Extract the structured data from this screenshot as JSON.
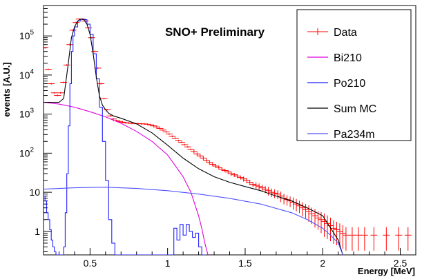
{
  "chart_data": {
    "type": "line",
    "title": "SNO+ Preliminary",
    "xlabel": "Energy [MeV]",
    "ylabel": "events [A.U.]",
    "xlim": [
      0.2,
      2.6
    ],
    "ylim": [
      0.25,
      600000
    ],
    "ylog": true,
    "grid": false,
    "legend_position": "top-right",
    "x_ticks": [
      0.5,
      1,
      1.5,
      2,
      2.5
    ],
    "x_tick_labels": [
      "0.5",
      "1",
      "1.5",
      "2",
      "2.5"
    ],
    "y_ticks": [
      1,
      10,
      100,
      1000,
      10000,
      100000
    ],
    "y_tick_labels": [
      {
        "base": "1",
        "exp": ""
      },
      {
        "base": "10",
        "exp": ""
      },
      {
        "base": "10",
        "exp": "2"
      },
      {
        "base": "10",
        "exp": "3"
      },
      {
        "base": "10",
        "exp": "4"
      },
      {
        "base": "10",
        "exp": "5"
      }
    ],
    "series": [
      {
        "name": "Data",
        "color": "#ff0000",
        "style": "markers",
        "x": [
          0.21,
          0.23,
          0.25,
          0.27,
          0.29,
          0.31,
          0.33,
          0.35,
          0.37,
          0.39,
          0.41,
          0.43,
          0.45,
          0.47,
          0.49,
          0.51,
          0.53,
          0.55,
          0.57,
          0.59,
          0.61,
          0.63,
          0.65,
          0.67,
          0.69,
          0.71,
          0.73,
          0.75,
          0.77,
          0.79,
          0.81,
          0.83,
          0.85,
          0.87,
          0.89,
          0.91,
          0.93,
          0.95,
          0.97,
          0.99,
          1.01,
          1.03,
          1.05,
          1.07,
          1.09,
          1.11,
          1.13,
          1.15,
          1.17,
          1.19,
          1.21,
          1.23,
          1.25,
          1.27,
          1.29,
          1.31,
          1.33,
          1.35,
          1.37,
          1.39,
          1.41,
          1.43,
          1.45,
          1.47,
          1.49,
          1.51,
          1.53,
          1.55,
          1.57,
          1.59,
          1.61,
          1.63,
          1.65,
          1.67,
          1.69,
          1.71,
          1.73,
          1.75,
          1.77,
          1.79,
          1.81,
          1.83,
          1.85,
          1.87,
          1.89,
          1.91,
          1.93,
          1.95,
          1.97,
          1.99,
          2.01,
          2.03,
          2.05,
          2.07,
          2.09,
          2.11,
          2.13,
          2.15,
          2.19,
          2.23,
          2.27,
          2.33,
          2.41,
          2.49,
          2.55
        ],
        "values": [
          50000,
          14000,
          6000,
          3500,
          3000,
          3500,
          6500,
          18000,
          60000,
          140000,
          220000,
          270000,
          270000,
          240000,
          160000,
          90000,
          40000,
          15000,
          6000,
          2500,
          1300,
          900,
          750,
          680,
          650,
          620,
          600,
          590,
          580,
          575,
          570,
          565,
          560,
          550,
          530,
          500,
          470,
          430,
          390,
          350,
          310,
          270,
          240,
          210,
          190,
          165,
          145,
          125,
          110,
          95,
          85,
          75,
          66,
          58,
          52,
          47,
          43,
          39,
          36,
          33,
          30,
          28,
          26,
          24,
          22,
          20,
          18,
          16,
          15,
          14,
          13,
          12,
          11,
          10,
          9.5,
          9,
          8,
          7,
          6.5,
          6,
          5.5,
          5,
          4.5,
          4,
          3.6,
          3.2,
          2.8,
          2.5,
          2.2,
          2.0,
          1.8,
          1.6,
          1.4,
          1.2,
          1.1,
          1.0,
          0.9,
          0.8,
          0.8,
          0.8,
          0.8,
          0.8,
          0.8,
          0.8,
          0.8
        ],
        "yerr_rel": [
          0.05,
          0.05,
          0.05,
          0.05,
          0.05,
          0.05,
          0.05,
          0.05,
          0.05,
          0.05,
          0.05,
          0.05,
          0.05,
          0.05,
          0.05,
          0.05,
          0.05,
          0.05,
          0.05,
          0.05,
          0.05,
          0.05,
          0.05,
          0.05,
          0.05,
          0.05,
          0.05,
          0.05,
          0.05,
          0.05,
          0.05,
          0.05,
          0.05,
          0.05,
          0.05,
          0.05,
          0.05,
          0.05,
          0.05,
          0.05,
          0.05,
          0.05,
          0.05,
          0.05,
          0.05,
          0.05,
          0.05,
          0.05,
          0.1,
          0.1,
          0.1,
          0.1,
          0.1,
          0.1,
          0.1,
          0.1,
          0.1,
          0.1,
          0.1,
          0.1,
          0.12,
          0.12,
          0.12,
          0.12,
          0.15,
          0.15,
          0.15,
          0.15,
          0.2,
          0.2,
          0.2,
          0.2,
          0.25,
          0.25,
          0.25,
          0.25,
          0.3,
          0.3,
          0.3,
          0.3,
          0.35,
          0.35,
          0.35,
          0.4,
          0.4,
          0.45,
          0.45,
          0.5,
          0.5,
          0.55,
          0.6,
          0.6,
          0.6,
          0.6,
          0.6,
          0.6,
          0.6,
          0.6,
          0.6,
          0.6,
          0.6,
          0.6,
          0.6,
          0.6,
          0.6
        ]
      },
      {
        "name": "Bi210",
        "color": "#e000e0",
        "style": "line",
        "x": [
          0.2,
          0.3,
          0.4,
          0.5,
          0.6,
          0.7,
          0.8,
          0.9,
          1.0,
          1.1,
          1.15,
          1.2,
          1.22,
          1.24,
          1.26
        ],
        "values": [
          2000,
          1800,
          1500,
          1150,
          850,
          580,
          360,
          200,
          90,
          25,
          10,
          2.5,
          1.2,
          0.5,
          0.25
        ]
      },
      {
        "name": "Po210",
        "color": "#2020ff",
        "style": "step",
        "x": [
          0.2,
          0.21,
          0.22,
          0.23,
          0.24,
          0.25,
          0.26,
          0.27,
          0.28,
          0.3,
          0.32,
          0.33,
          0.34,
          0.35,
          0.36,
          0.37,
          0.38,
          0.39,
          0.4,
          0.42,
          0.44,
          0.46,
          0.48,
          0.5,
          0.52,
          0.54,
          0.56,
          0.58,
          0.6,
          0.62,
          0.64,
          0.66,
          0.68,
          0.7,
          1.02,
          1.04,
          1.06,
          1.08,
          1.1,
          1.12,
          1.14,
          1.16,
          1.18,
          1.2,
          1.22
        ],
        "values": [
          8,
          6,
          3,
          2,
          1.1,
          0.6,
          0.4,
          0.3,
          0.25,
          0.25,
          0.25,
          0.4,
          3,
          30,
          500,
          6000,
          40000,
          100000,
          170000,
          240000,
          270000,
          260000,
          200000,
          110000,
          35000,
          8000,
          1500,
          200,
          20,
          2,
          0.5,
          0.25,
          0.25,
          0.25,
          0.25,
          1.2,
          0.6,
          1.5,
          0.8,
          1.5,
          1.0,
          0.7,
          0.9,
          0.4,
          0.25
        ]
      },
      {
        "name": "Sum MC",
        "color": "#000000",
        "style": "line",
        "x": [
          0.2,
          0.25,
          0.3,
          0.33,
          0.36,
          0.38,
          0.4,
          0.42,
          0.44,
          0.46,
          0.48,
          0.5,
          0.52,
          0.54,
          0.56,
          0.58,
          0.6,
          0.62,
          0.65,
          0.7,
          0.8,
          0.9,
          1.0,
          1.1,
          1.2,
          1.3,
          1.4,
          1.5,
          1.6,
          1.7,
          1.8,
          1.9,
          2.0,
          2.1,
          2.13
        ],
        "values": [
          2000,
          2000,
          2000,
          2500,
          20000,
          90000,
          170000,
          240000,
          270000,
          260000,
          200000,
          110000,
          35000,
          9000,
          3000,
          1700,
          1300,
          1050,
          900,
          780,
          560,
          330,
          160,
          75,
          40,
          25,
          18,
          14,
          11,
          8,
          6,
          4,
          2.5,
          0.6,
          0.25
        ]
      },
      {
        "name": "Pa234m",
        "color": "#5050ff",
        "style": "line",
        "x": [
          0.2,
          0.4,
          0.6,
          0.8,
          1.0,
          1.2,
          1.4,
          1.6,
          1.8,
          1.9,
          2.0,
          2.05,
          2.1,
          2.13
        ],
        "values": [
          12,
          13,
          13.5,
          12.5,
          11,
          9,
          7,
          5,
          3,
          2,
          1.2,
          0.8,
          0.5,
          0.25
        ]
      }
    ]
  }
}
